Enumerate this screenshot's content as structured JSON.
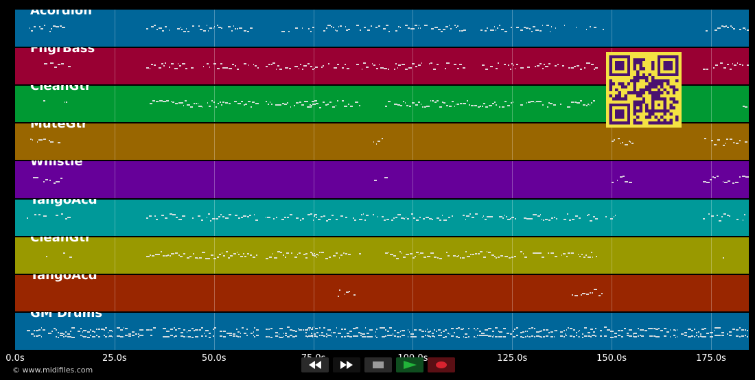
{
  "tracks": [
    {
      "name": "Acordion",
      "color": "#006699"
    },
    {
      "name": "FngrBass",
      "color": "#990033"
    },
    {
      "name": "CleanGtr",
      "color": "#009933"
    },
    {
      "name": "MuteGtr",
      "color": "#996600"
    },
    {
      "name": "Whistle",
      "color": "#660099"
    },
    {
      "name": "TangoAcd",
      "color": "#009999"
    },
    {
      "name": "CleanGtr",
      "color": "#999900"
    },
    {
      "name": "TangoAcd",
      "color": "#992600"
    },
    {
      "name": "GM Drums",
      "color": "#006699"
    }
  ],
  "timeline": {
    "ticks": [
      "0.0s",
      "25.0s",
      "50.0s",
      "75.0s",
      "100.0s",
      "125.0s",
      "150.0s",
      "175.0s"
    ],
    "tick_seconds": [
      0,
      25,
      50,
      75,
      100,
      125,
      150,
      175
    ],
    "max_seconds": 184.5
  },
  "footer": {
    "copyright": "© www.midifiles.com"
  },
  "transport": {
    "rewind_icon": "rewind-icon",
    "fast_forward_icon": "fast-forward-icon",
    "stop_icon": "stop-icon",
    "play_icon": "play-icon",
    "record_icon": "record-icon"
  },
  "qr_code": {
    "icon": "qr-code",
    "color": "#f4e243"
  },
  "note_segments": [
    [
      [
        3,
        13,
        0.5
      ],
      [
        33,
        60,
        0.7
      ],
      [
        67,
        76,
        0.6
      ],
      [
        77,
        113,
        0.8
      ],
      [
        117,
        126,
        0.6
      ],
      [
        127,
        136,
        0.6
      ],
      [
        138,
        148,
        0.7
      ],
      [
        173,
        184,
        0.6
      ]
    ],
    [
      [
        3,
        14,
        0.5
      ],
      [
        33,
        61,
        0.7
      ],
      [
        63,
        76,
        0.7
      ],
      [
        77,
        113,
        0.8
      ],
      [
        117,
        126,
        0.7
      ],
      [
        127,
        146,
        0.8
      ],
      [
        173,
        184,
        0.6
      ]
    ],
    [
      [
        7,
        8,
        0.4
      ],
      [
        12,
        14,
        0.4
      ],
      [
        33,
        61,
        0.9
      ],
      [
        63,
        76,
        0.8
      ],
      [
        73,
        87,
        0.8
      ],
      [
        93,
        126,
        0.9
      ],
      [
        127,
        136,
        0.8
      ],
      [
        137,
        146,
        0.8
      ],
      [
        178,
        179,
        0.4
      ],
      [
        183,
        184,
        0.4
      ]
    ],
    [
      [
        3,
        13,
        0.5
      ],
      [
        88,
        93,
        0.5
      ],
      [
        150,
        155,
        0.5
      ],
      [
        173,
        184,
        0.6
      ]
    ],
    [
      [
        3,
        13,
        0.5
      ],
      [
        88,
        93,
        0.5
      ],
      [
        150,
        155,
        0.5
      ],
      [
        173,
        184,
        0.6
      ]
    ],
    [
      [
        3,
        14,
        0.6
      ],
      [
        33,
        61,
        0.8
      ],
      [
        63,
        76,
        0.7
      ],
      [
        73,
        87,
        0.7
      ],
      [
        87,
        126,
        0.8
      ],
      [
        127,
        136,
        0.8
      ],
      [
        137,
        146,
        0.8
      ],
      [
        148,
        152,
        0.5
      ],
      [
        173,
        184,
        0.6
      ]
    ],
    [
      [
        7,
        8,
        0.4
      ],
      [
        12,
        14,
        0.4
      ],
      [
        33,
        61,
        0.9
      ],
      [
        63,
        76,
        0.8
      ],
      [
        73,
        87,
        0.8
      ],
      [
        93,
        126,
        0.9
      ],
      [
        127,
        136,
        0.8
      ],
      [
        137,
        146,
        0.8
      ],
      [
        178,
        179,
        0.4
      ],
      [
        183,
        184,
        0.4
      ]
    ],
    [
      [
        79,
        88,
        0.5
      ],
      [
        140,
        149,
        0.5
      ]
    ],
    [
      [
        3,
        33,
        0.9
      ],
      [
        33,
        61,
        0.9
      ],
      [
        63,
        76,
        0.9
      ],
      [
        73,
        88,
        0.9
      ],
      [
        88,
        126,
        0.9
      ],
      [
        127,
        136,
        0.9
      ],
      [
        137,
        146,
        0.9
      ],
      [
        147,
        184,
        0.9
      ]
    ]
  ]
}
